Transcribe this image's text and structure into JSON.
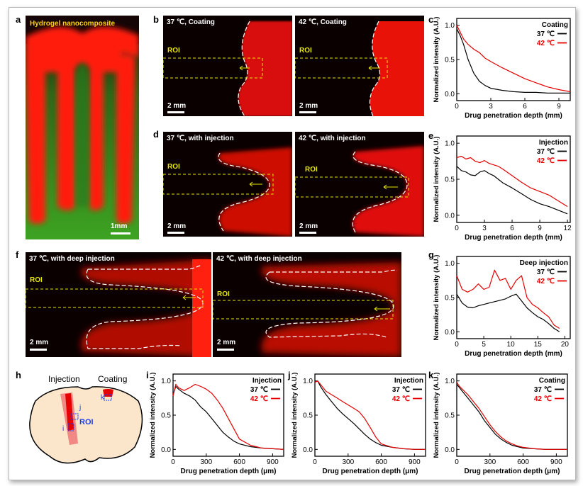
{
  "colors": {
    "c37": "#000000",
    "c42": "#e60000"
  },
  "panel_a": {
    "letter": "a",
    "title": "Hydrogel nanocomposite",
    "scale": "1mm"
  },
  "panel_b": {
    "letter": "b",
    "left_title": "37 ℃, Coating",
    "right_title": "42 ℃, Coating",
    "roi": "ROI",
    "scale": "2 mm"
  },
  "panel_d": {
    "letter": "d",
    "left_title": "37 ℃, with injection",
    "right_title": "42 ℃, with injection",
    "roi": "ROI",
    "scale": "2 mm"
  },
  "panel_f": {
    "letter": "f",
    "left_title": "37 ℃, with deep injection",
    "right_title": "42 ℃, with deep injection",
    "roi": "ROI",
    "scale": "2 mm"
  },
  "panel_h": {
    "letter": "h",
    "injection": "Injection",
    "coating": "Coating",
    "roi": "ROI",
    "i": "i",
    "j": "j",
    "k": "k"
  },
  "chart_data": [
    {
      "id": "c",
      "type": "line",
      "title": "Coating",
      "xlabel": "Drug penetration depth (mm)",
      "ylabel": "Normalized intensity (A.U.)",
      "xlim": [
        0,
        10
      ],
      "ylim": [
        -0.1,
        1.1
      ],
      "xticks": [
        0,
        3,
        6,
        9
      ],
      "yticks": [
        0.0,
        0.5,
        1.0
      ],
      "series": [
        {
          "name": "37 ℃",
          "x": [
            0,
            0.3,
            0.6,
            1,
            1.5,
            2,
            2.5,
            3,
            4,
            5,
            6,
            7,
            8,
            9,
            10
          ],
          "y": [
            0.95,
            0.85,
            0.72,
            0.5,
            0.3,
            0.18,
            0.12,
            0.08,
            0.05,
            0.03,
            0.02,
            0.02,
            0.01,
            0.01,
            0.01
          ]
        },
        {
          "name": "42 ℃",
          "x": [
            0,
            0.3,
            0.6,
            1,
            1.5,
            2,
            2.5,
            3,
            4,
            5,
            6,
            7,
            8,
            9,
            10
          ],
          "y": [
            1.0,
            0.9,
            0.8,
            0.72,
            0.65,
            0.6,
            0.52,
            0.47,
            0.38,
            0.3,
            0.22,
            0.16,
            0.1,
            0.06,
            0.03
          ]
        }
      ]
    },
    {
      "id": "e",
      "type": "line",
      "title": "Injection",
      "xlabel": "Drug penetration depth (mm)",
      "ylabel": "Normalized intensity (A.U.)",
      "xlim": [
        0,
        12.3
      ],
      "ylim": [
        -0.1,
        1.1
      ],
      "xticks": [
        0,
        3,
        6,
        9,
        12
      ],
      "yticks": [
        0.0,
        0.5,
        1.0
      ],
      "series": [
        {
          "name": "37 ℃",
          "x": [
            0,
            0.5,
            1,
            1.5,
            2,
            2.5,
            3,
            3.5,
            4,
            4.5,
            5,
            6,
            7,
            8,
            9,
            10,
            11,
            12
          ],
          "y": [
            0.68,
            0.62,
            0.6,
            0.56,
            0.55,
            0.6,
            0.62,
            0.58,
            0.55,
            0.5,
            0.45,
            0.38,
            0.3,
            0.22,
            0.16,
            0.12,
            0.07,
            0.02
          ]
        },
        {
          "name": "42 ℃",
          "x": [
            0,
            0.5,
            1,
            1.5,
            2,
            2.5,
            3,
            3.5,
            4,
            4.5,
            5,
            6,
            7,
            8,
            9,
            10,
            11,
            12
          ],
          "y": [
            0.8,
            0.82,
            0.78,
            0.8,
            0.75,
            0.73,
            0.76,
            0.72,
            0.7,
            0.68,
            0.64,
            0.55,
            0.46,
            0.38,
            0.33,
            0.28,
            0.2,
            0.12
          ]
        }
      ]
    },
    {
      "id": "g",
      "type": "line",
      "title": "Deep injection",
      "xlabel": "Drug penetration depth (mm)",
      "ylabel": "Normalized intensity (A.U.)",
      "xlim": [
        0,
        21
      ],
      "ylim": [
        -0.1,
        1.1
      ],
      "xticks": [
        0,
        5,
        10,
        15,
        20
      ],
      "yticks": [
        0.0,
        0.5,
        1.0
      ],
      "series": [
        {
          "name": "37 ℃",
          "x": [
            0,
            1,
            2,
            3,
            4,
            5,
            6,
            7,
            8,
            9,
            10,
            11,
            12,
            13,
            14,
            15,
            16,
            17,
            18,
            19
          ],
          "y": [
            0.55,
            0.42,
            0.36,
            0.35,
            0.38,
            0.4,
            0.42,
            0.44,
            0.46,
            0.48,
            0.52,
            0.55,
            0.45,
            0.35,
            0.28,
            0.22,
            0.18,
            0.12,
            0.05,
            0.0
          ]
        },
        {
          "name": "42 ℃",
          "x": [
            0,
            1,
            2,
            3,
            4,
            5,
            6,
            7,
            8,
            9,
            10,
            11,
            12,
            13,
            14,
            15,
            16,
            17,
            18,
            19
          ],
          "y": [
            0.82,
            0.62,
            0.58,
            0.62,
            0.7,
            0.62,
            0.65,
            0.9,
            0.75,
            0.78,
            0.62,
            0.75,
            0.82,
            0.5,
            0.4,
            0.35,
            0.28,
            0.22,
            0.1,
            0.05
          ]
        }
      ]
    },
    {
      "id": "i",
      "type": "line",
      "title": "Injection",
      "xlabel": "Drug penetration depth (μm)",
      "ylabel": "Normalized intensity (A.U.)",
      "xlim": [
        0,
        1000
      ],
      "ylim": [
        -0.1,
        1.1
      ],
      "xticks": [
        0,
        300,
        600,
        900
      ],
      "yticks": [
        0.0,
        0.5,
        1.0
      ],
      "series": [
        {
          "name": "37 ℃",
          "x": [
            0,
            25,
            50,
            100,
            150,
            200,
            250,
            300,
            350,
            400,
            450,
            500,
            550,
            600,
            700,
            800,
            900,
            1000
          ],
          "y": [
            0.8,
            0.92,
            0.88,
            0.82,
            0.78,
            0.72,
            0.62,
            0.55,
            0.45,
            0.35,
            0.25,
            0.18,
            0.12,
            0.08,
            0.04,
            0.02,
            0.01,
            0.0
          ]
        },
        {
          "name": "42 ℃",
          "x": [
            0,
            25,
            50,
            100,
            150,
            200,
            250,
            300,
            350,
            400,
            450,
            500,
            550,
            600,
            700,
            800,
            900,
            1000
          ],
          "y": [
            0.78,
            0.95,
            0.9,
            0.86,
            0.9,
            0.95,
            0.92,
            0.88,
            0.82,
            0.72,
            0.6,
            0.45,
            0.3,
            0.15,
            0.06,
            0.02,
            0.01,
            0.0
          ]
        }
      ]
    },
    {
      "id": "j",
      "type": "line",
      "title": "Injection",
      "xlabel": "Drug penetration depth (μm)",
      "ylabel": "Normalized intensity (A.U.)",
      "xlim": [
        0,
        1000
      ],
      "ylim": [
        -0.1,
        1.1
      ],
      "xticks": [
        0,
        300,
        600,
        900
      ],
      "yticks": [
        0.0,
        0.5,
        1.0
      ],
      "series": [
        {
          "name": "37 ℃",
          "x": [
            0,
            25,
            50,
            100,
            150,
            200,
            250,
            300,
            350,
            400,
            450,
            500,
            550,
            600,
            700,
            800,
            900,
            1000
          ],
          "y": [
            0.98,
            1.0,
            0.92,
            0.8,
            0.7,
            0.6,
            0.52,
            0.45,
            0.38,
            0.3,
            0.22,
            0.15,
            0.1,
            0.06,
            0.03,
            0.01,
            0.0,
            0.0
          ]
        },
        {
          "name": "42 ℃",
          "x": [
            0,
            25,
            50,
            100,
            150,
            200,
            250,
            300,
            350,
            400,
            450,
            500,
            550,
            600,
            700,
            800,
            900,
            1000
          ],
          "y": [
            0.98,
            1.0,
            0.95,
            0.85,
            0.8,
            0.75,
            0.7,
            0.65,
            0.6,
            0.55,
            0.45,
            0.32,
            0.18,
            0.08,
            0.03,
            0.01,
            0.0,
            0.0
          ]
        }
      ]
    },
    {
      "id": "k",
      "type": "line",
      "title": "Coating",
      "xlabel": "Drug penetration depth (μm)",
      "ylabel": "Normalized intensity (A.U.)",
      "xlim": [
        0,
        1000
      ],
      "ylim": [
        -0.1,
        1.1
      ],
      "xticks": [
        0,
        300,
        600,
        900
      ],
      "yticks": [
        0.0,
        0.5,
        1.0
      ],
      "series": [
        {
          "name": "37 ℃",
          "x": [
            0,
            25,
            50,
            100,
            150,
            200,
            250,
            300,
            350,
            400,
            450,
            500,
            550,
            600,
            700,
            800,
            900,
            1000
          ],
          "y": [
            0.95,
            0.9,
            0.85,
            0.75,
            0.65,
            0.55,
            0.42,
            0.32,
            0.22,
            0.15,
            0.1,
            0.06,
            0.04,
            0.02,
            0.01,
            0.0,
            0.0,
            0.0
          ]
        },
        {
          "name": "42 ℃",
          "x": [
            0,
            25,
            50,
            100,
            150,
            200,
            250,
            300,
            350,
            400,
            450,
            500,
            550,
            600,
            700,
            800,
            900,
            1000
          ],
          "y": [
            0.98,
            0.92,
            0.88,
            0.8,
            0.7,
            0.6,
            0.48,
            0.36,
            0.26,
            0.18,
            0.12,
            0.08,
            0.05,
            0.03,
            0.01,
            0.0,
            0.0,
            0.0
          ]
        }
      ]
    }
  ]
}
